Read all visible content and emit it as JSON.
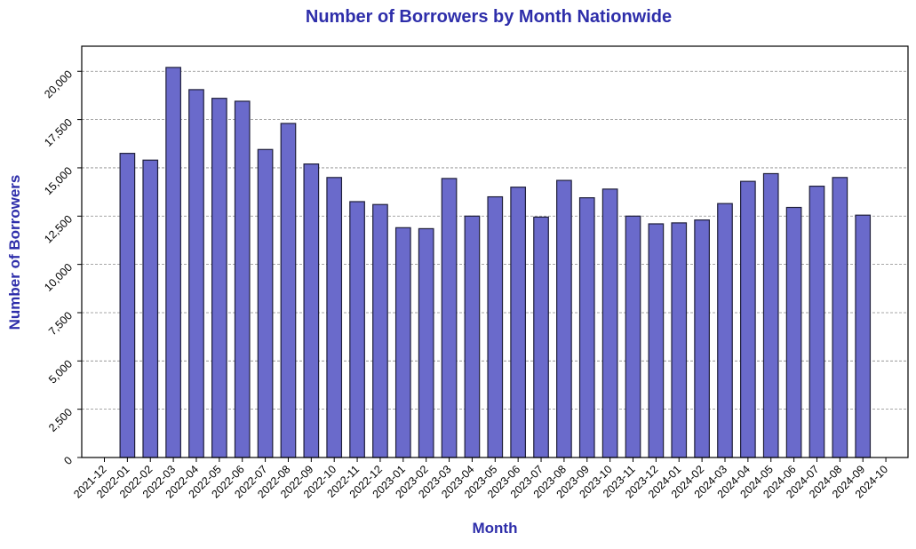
{
  "chart_data": {
    "type": "bar",
    "title": "Number of Borrowers by Month Nationwide",
    "xlabel": "Month",
    "ylabel": "Number of Borrowers",
    "x_ticks": [
      "2021-12",
      "2022-01",
      "2022-02",
      "2022-03",
      "2022-04",
      "2022-05",
      "2022-06",
      "2022-07",
      "2022-08",
      "2022-09",
      "2022-10",
      "2022-11",
      "2022-12",
      "2023-01",
      "2023-02",
      "2023-03",
      "2023-04",
      "2023-05",
      "2023-06",
      "2023-07",
      "2023-08",
      "2023-09",
      "2023-10",
      "2023-11",
      "2023-12",
      "2024-01",
      "2024-02",
      "2024-03",
      "2024-04",
      "2024-05",
      "2024-06",
      "2024-07",
      "2024-08",
      "2024-09",
      "2024-10"
    ],
    "categories": [
      "2022-01",
      "2022-02",
      "2022-03",
      "2022-04",
      "2022-05",
      "2022-06",
      "2022-07",
      "2022-08",
      "2022-09",
      "2022-10",
      "2022-11",
      "2022-12",
      "2023-01",
      "2023-02",
      "2023-03",
      "2023-04",
      "2023-05",
      "2023-06",
      "2023-07",
      "2023-08",
      "2023-09",
      "2023-10",
      "2023-11",
      "2023-12",
      "2024-01",
      "2024-02",
      "2024-03",
      "2024-04",
      "2024-05",
      "2024-06",
      "2024-07",
      "2024-08",
      "2024-09"
    ],
    "values": [
      15750,
      15400,
      20200,
      19050,
      18600,
      18450,
      15950,
      17300,
      15200,
      14500,
      13250,
      13100,
      11900,
      11850,
      14450,
      12500,
      13500,
      14000,
      12450,
      14350,
      13450,
      13900,
      12500,
      12100,
      12150,
      12300,
      13150,
      14300,
      14700,
      12950,
      14050,
      14500,
      12550
    ],
    "y_ticks": [
      0,
      2500,
      5000,
      7500,
      10000,
      12500,
      15000,
      17500,
      20000
    ],
    "y_tick_labels": [
      "0",
      "2,500",
      "5,000",
      "7,500",
      "10,000",
      "12,500",
      "15,000",
      "17,500",
      "20,000"
    ],
    "ylim": [
      0,
      21300
    ],
    "grid": "horizontal dashed",
    "legend": "none",
    "colors": {
      "bar_fill": "#6a6acb",
      "bar_edge": "#1f1f3a",
      "title": "#2e2eaa",
      "axis_label": "#2e2eaa",
      "grid": "#8a8a8a"
    }
  }
}
